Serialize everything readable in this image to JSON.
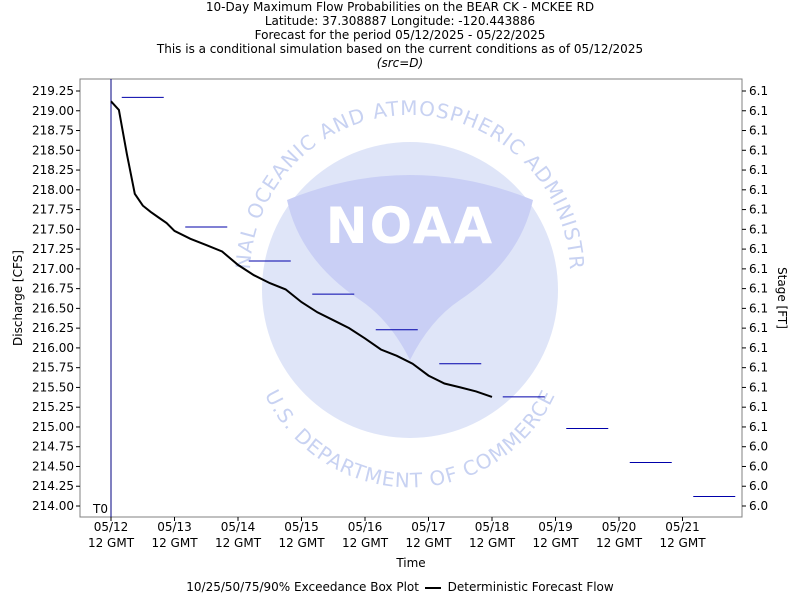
{
  "titles": {
    "line1": "10-Day Maximum Flow Probabilities on the BEAR CK - MCKEE RD",
    "line2": "Latitude: 37.308887 Longitude: -120.443886",
    "line3": "Forecast for the period 05/12/2025 - 05/22/2025",
    "line4": "This is a conditional simulation based on the current conditions as of 05/12/2025",
    "line5": "(src=D)"
  },
  "watermark": {
    "logo_text": "NOAA",
    "ring_top": "NATIONAL OCEANIC AND ATMOSPHERIC ADMINISTRATION",
    "ring_bottom": "U.S. DEPARTMENT OF COMMERCE"
  },
  "legend": {
    "box_label": "10/25/50/75/90% Exceedance Box Plot",
    "line_label": "Deterministic Forecast Flow"
  },
  "colors": {
    "box_plot": "#0000aa",
    "deterministic": "#000000",
    "t0_line": "#000080",
    "watermark": "#c8d2f2"
  },
  "chart_data": {
    "type": "line",
    "xlabel": "Time",
    "ylabel": "Discharge [CFS]",
    "y2label": "Stage [FT]",
    "t0_label": "T0",
    "ylim": [
      214.0,
      219.25
    ],
    "y_ticks": [
      "219.25",
      "219.00",
      "218.75",
      "218.50",
      "218.25",
      "218.00",
      "217.75",
      "217.50",
      "217.25",
      "217.00",
      "216.75",
      "216.50",
      "216.25",
      "216.00",
      "215.75",
      "215.50",
      "215.25",
      "215.00",
      "214.75",
      "214.50",
      "214.25",
      "214.00"
    ],
    "y2_ticks": [
      "6.1",
      "6.1",
      "6.1",
      "6.1",
      "6.1",
      "6.1",
      "6.1",
      "6.1",
      "6.1",
      "6.1",
      "6.1",
      "6.1",
      "6.1",
      "6.1",
      "6.1",
      "6.1",
      "6.1",
      "6.1",
      "6.0",
      "6.0",
      "6.0",
      "6.0"
    ],
    "x_ticks": [
      {
        "date": "05/12",
        "time": "12 GMT"
      },
      {
        "date": "05/13",
        "time": "12 GMT"
      },
      {
        "date": "05/14",
        "time": "12 GMT"
      },
      {
        "date": "05/15",
        "time": "12 GMT"
      },
      {
        "date": "05/16",
        "time": "12 GMT"
      },
      {
        "date": "05/17",
        "time": "12 GMT"
      },
      {
        "date": "05/18",
        "time": "12 GMT"
      },
      {
        "date": "05/19",
        "time": "12 GMT"
      },
      {
        "date": "05/20",
        "time": "12 GMT"
      },
      {
        "date": "05/21",
        "time": "12 GMT"
      }
    ],
    "series": [
      {
        "name": "Deterministic Forecast Flow",
        "x": [
          "05/12 12:00",
          "05/12 15:00",
          "05/12 18:00",
          "05/12 21:00",
          "05/13 00:00",
          "05/13 03:00",
          "05/13 06:00",
          "05/13 09:00",
          "05/13 12:00",
          "05/13 18:00",
          "05/14 00:00",
          "05/14 06:00",
          "05/14 12:00",
          "05/14 18:00",
          "05/15 00:00",
          "05/15 06:00",
          "05/15 12:00",
          "05/15 18:00",
          "05/16 00:00",
          "05/16 06:00",
          "05/16 12:00",
          "05/16 18:00",
          "05/17 00:00",
          "05/17 06:00",
          "05/17 12:00",
          "05/17 18:00",
          "05/18 00:00",
          "05/18 06:00",
          "05/18 12:00"
        ],
        "values": [
          219.12,
          219.01,
          218.45,
          217.95,
          217.8,
          217.72,
          217.65,
          217.58,
          217.48,
          217.38,
          217.3,
          217.22,
          217.05,
          216.92,
          216.82,
          216.74,
          216.58,
          216.45,
          216.35,
          216.25,
          216.12,
          215.98,
          215.9,
          215.8,
          215.65,
          215.55,
          215.5,
          215.45,
          215.38
        ]
      },
      {
        "name": "90% Exceedance (weekly box plot, collapsed)",
        "x": [
          "05/12 12:00",
          "05/13 12:00",
          "05/14 12:00",
          "05/15 12:00",
          "05/16 12:00",
          "05/17 12:00",
          "05/18 12:00",
          "05/19 12:00",
          "05/20 12:00",
          "05/21 12:00"
        ],
        "values": [
          219.17,
          217.53,
          217.1,
          216.68,
          216.23,
          215.8,
          215.38,
          214.98,
          214.55,
          214.12
        ]
      }
    ]
  }
}
